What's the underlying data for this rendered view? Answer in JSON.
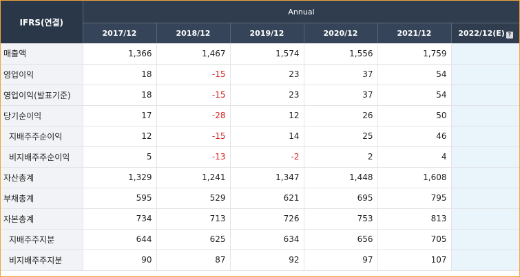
{
  "header": {
    "corner_label": "IFRS(연결)",
    "group_label": "Annual",
    "years": [
      "2017/12",
      "2018/12",
      "2019/12",
      "2020/12",
      "2021/12"
    ],
    "estimate_year": "2022/12(E)",
    "estimate_icon": "question-icon"
  },
  "rows": [
    {
      "label": "매출액",
      "sub": false,
      "values": [
        "1,366",
        "1,467",
        "1,574",
        "1,556",
        "1,759"
      ],
      "estimate": ""
    },
    {
      "label": "영업이익",
      "sub": false,
      "values": [
        "18",
        "-15",
        "23",
        "37",
        "54"
      ],
      "estimate": ""
    },
    {
      "label": "영업이익(발표기준)",
      "sub": false,
      "values": [
        "18",
        "-15",
        "23",
        "37",
        "54"
      ],
      "estimate": ""
    },
    {
      "label": "당기순이익",
      "sub": false,
      "values": [
        "17",
        "-28",
        "12",
        "26",
        "50"
      ],
      "estimate": ""
    },
    {
      "label": "지배주주순이익",
      "sub": true,
      "values": [
        "12",
        "-15",
        "14",
        "25",
        "46"
      ],
      "estimate": ""
    },
    {
      "label": "비지배주주순이익",
      "sub": true,
      "values": [
        "5",
        "-13",
        "-2",
        "2",
        "4"
      ],
      "estimate": ""
    },
    {
      "label": "자산총계",
      "sub": false,
      "values": [
        "1,329",
        "1,241",
        "1,347",
        "1,448",
        "1,608"
      ],
      "estimate": ""
    },
    {
      "label": "부채총계",
      "sub": false,
      "values": [
        "595",
        "529",
        "621",
        "695",
        "795"
      ],
      "estimate": ""
    },
    {
      "label": "자본총계",
      "sub": false,
      "values": [
        "734",
        "713",
        "726",
        "753",
        "813"
      ],
      "estimate": ""
    },
    {
      "label": "지배주주지분",
      "sub": true,
      "values": [
        "644",
        "625",
        "634",
        "656",
        "705"
      ],
      "estimate": ""
    },
    {
      "label": "비지배주주지분",
      "sub": true,
      "values": [
        "90",
        "87",
        "92",
        "97",
        "107"
      ],
      "estimate": ""
    }
  ],
  "colors": {
    "header_bg": "#2f3d4f",
    "negative_text": "#d21f1f",
    "estimate_bg": "#e9f4fb",
    "frame_border": "#f2a33a"
  }
}
